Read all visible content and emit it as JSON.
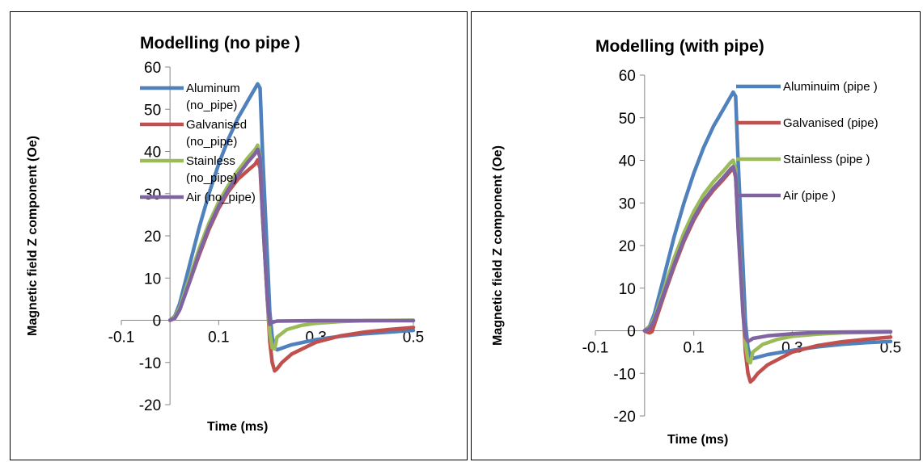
{
  "chart_data": [
    {
      "type": "line",
      "title": "Modelling (no pipe )",
      "xlabel": "Time (ms)",
      "ylabel": "Magnetic field Z component (Oe)",
      "xlim": [
        -0.1,
        0.5
      ],
      "ylim": [
        -20,
        60
      ],
      "x_ticks": [
        "-0.1",
        "0.1",
        "0.3",
        "0.5"
      ],
      "y_ticks": [
        "-20",
        "-10",
        "0",
        "10",
        "20",
        "30",
        "40",
        "50",
        "60"
      ],
      "legend_position": "right",
      "series": [
        {
          "name": "Aluminum (no_pipe)",
          "legend_lines": [
            "Aluminum",
            "(no_pipe)"
          ],
          "color": "#4f81bd",
          "points": [
            [
              0,
              0
            ],
            [
              0.01,
              1
            ],
            [
              0.02,
              4
            ],
            [
              0.04,
              13
            ],
            [
              0.06,
              22
            ],
            [
              0.08,
              30
            ],
            [
              0.1,
              37
            ],
            [
              0.12,
              43
            ],
            [
              0.14,
              48
            ],
            [
              0.16,
              52
            ],
            [
              0.17,
              54
            ],
            [
              0.18,
              56
            ],
            [
              0.185,
              55
            ],
            [
              0.19,
              40
            ],
            [
              0.2,
              15
            ],
            [
              0.205,
              2
            ],
            [
              0.21,
              -4
            ],
            [
              0.215,
              -6.5
            ],
            [
              0.22,
              -7
            ],
            [
              0.25,
              -5.8
            ],
            [
              0.3,
              -4.6
            ],
            [
              0.35,
              -3.8
            ],
            [
              0.4,
              -3.2
            ],
            [
              0.45,
              -2.8
            ],
            [
              0.5,
              -2.4
            ]
          ]
        },
        {
          "name": "Galvanised (no_pipe)",
          "legend_lines": [
            "Galvanised",
            "(no_pipe)"
          ],
          "color": "#c0504d",
          "points": [
            [
              0,
              0
            ],
            [
              0.01,
              0.5
            ],
            [
              0.02,
              2.5
            ],
            [
              0.04,
              9
            ],
            [
              0.06,
              15.5
            ],
            [
              0.08,
              21.5
            ],
            [
              0.1,
              26.5
            ],
            [
              0.12,
              30.5
            ],
            [
              0.14,
              33.5
            ],
            [
              0.16,
              35.5
            ],
            [
              0.175,
              37
            ],
            [
              0.18,
              38
            ],
            [
              0.185,
              36
            ],
            [
              0.19,
              25
            ],
            [
              0.2,
              5
            ],
            [
              0.205,
              -5
            ],
            [
              0.21,
              -10
            ],
            [
              0.215,
              -12
            ],
            [
              0.22,
              -11.5
            ],
            [
              0.23,
              -10
            ],
            [
              0.25,
              -8
            ],
            [
              0.3,
              -5.2
            ],
            [
              0.35,
              -3.7
            ],
            [
              0.4,
              -2.8
            ],
            [
              0.45,
              -2.2
            ],
            [
              0.5,
              -1.7
            ]
          ]
        },
        {
          "name": "Stainless (no_pipe)",
          "legend_lines": [
            "Stainless",
            "(no_pipe)"
          ],
          "color": "#9bbb59",
          "points": [
            [
              0,
              0
            ],
            [
              0.01,
              0.8
            ],
            [
              0.02,
              3
            ],
            [
              0.04,
              10
            ],
            [
              0.06,
              17
            ],
            [
              0.08,
              23
            ],
            [
              0.1,
              28
            ],
            [
              0.12,
              32
            ],
            [
              0.14,
              35.5
            ],
            [
              0.16,
              38.5
            ],
            [
              0.175,
              40.5
            ],
            [
              0.18,
              41.5
            ],
            [
              0.185,
              39
            ],
            [
              0.19,
              25
            ],
            [
              0.2,
              5
            ],
            [
              0.205,
              -3
            ],
            [
              0.21,
              -6.5
            ],
            [
              0.215,
              -6.8
            ],
            [
              0.22,
              -4
            ],
            [
              0.24,
              -2.2
            ],
            [
              0.27,
              -1.2
            ],
            [
              0.3,
              -0.7
            ],
            [
              0.35,
              -0.3
            ],
            [
              0.4,
              -0.1
            ],
            [
              0.5,
              0
            ]
          ]
        },
        {
          "name": "Air (no_pipe)",
          "legend_lines": [
            "Air (no_pipe)"
          ],
          "color": "#8064a2",
          "points": [
            [
              0,
              0
            ],
            [
              0.01,
              0.5
            ],
            [
              0.02,
              2.5
            ],
            [
              0.04,
              9
            ],
            [
              0.06,
              16
            ],
            [
              0.08,
              22
            ],
            [
              0.1,
              27
            ],
            [
              0.12,
              31
            ],
            [
              0.14,
              34.5
            ],
            [
              0.16,
              37.5
            ],
            [
              0.175,
              39.5
            ],
            [
              0.18,
              40.5
            ],
            [
              0.185,
              38.5
            ],
            [
              0.19,
              25
            ],
            [
              0.2,
              5
            ],
            [
              0.205,
              -1
            ],
            [
              0.21,
              -0.5
            ],
            [
              0.22,
              -0.2
            ],
            [
              0.3,
              -0.1
            ],
            [
              0.5,
              -0.1
            ]
          ]
        }
      ]
    },
    {
      "type": "line",
      "title": "Modelling (with pipe)",
      "xlabel": "Time (ms)",
      "ylabel": "Magnetic field  Z component (Oe)",
      "xlim": [
        -0.1,
        0.5
      ],
      "ylim": [
        -20,
        60
      ],
      "x_ticks": [
        "-0.1",
        "0.1",
        "0.3",
        "0.5"
      ],
      "y_ticks": [
        "-20",
        "-10",
        "0",
        "10",
        "20",
        "30",
        "40",
        "50",
        "60"
      ],
      "legend_position": "right",
      "series": [
        {
          "name": "Aluminuim (pipe )",
          "legend_lines": [
            "Aluminuim (pipe )"
          ],
          "color": "#4f81bd",
          "points": [
            [
              0,
              0
            ],
            [
              0.01,
              1
            ],
            [
              0.02,
              4
            ],
            [
              0.04,
              13
            ],
            [
              0.06,
              22
            ],
            [
              0.08,
              30
            ],
            [
              0.1,
              37
            ],
            [
              0.12,
              43
            ],
            [
              0.14,
              48
            ],
            [
              0.16,
              52
            ],
            [
              0.17,
              54
            ],
            [
              0.18,
              56
            ],
            [
              0.185,
              55
            ],
            [
              0.19,
              40
            ],
            [
              0.2,
              15
            ],
            [
              0.205,
              2
            ],
            [
              0.21,
              -4
            ],
            [
              0.215,
              -6.2
            ],
            [
              0.22,
              -6.5
            ],
            [
              0.25,
              -5.6
            ],
            [
              0.3,
              -4.6
            ],
            [
              0.35,
              -3.8
            ],
            [
              0.4,
              -3.2
            ],
            [
              0.45,
              -2.8
            ],
            [
              0.5,
              -2.5
            ]
          ]
        },
        {
          "name": "Galvanised  (pipe)",
          "legend_lines": [
            "Galvanised  (pipe)"
          ],
          "color": "#c0504d",
          "points": [
            [
              0,
              0
            ],
            [
              0.005,
              -0.3
            ],
            [
              0.01,
              -0.5
            ],
            [
              0.015,
              -0.2
            ],
            [
              0.02,
              1.5
            ],
            [
              0.04,
              8.5
            ],
            [
              0.06,
              15
            ],
            [
              0.08,
              21
            ],
            [
              0.1,
              26
            ],
            [
              0.12,
              30
            ],
            [
              0.14,
              33
            ],
            [
              0.16,
              35.5
            ],
            [
              0.175,
              37.5
            ],
            [
              0.18,
              38.5
            ],
            [
              0.185,
              36
            ],
            [
              0.19,
              25
            ],
            [
              0.2,
              5
            ],
            [
              0.205,
              -5
            ],
            [
              0.21,
              -10
            ],
            [
              0.215,
              -12
            ],
            [
              0.22,
              -11.5
            ],
            [
              0.23,
              -10
            ],
            [
              0.25,
              -8
            ],
            [
              0.3,
              -5
            ],
            [
              0.35,
              -3.5
            ],
            [
              0.4,
              -2.6
            ],
            [
              0.45,
              -2
            ],
            [
              0.5,
              -1.5
            ]
          ]
        },
        {
          "name": "Stainless  (pipe )",
          "legend_lines": [
            "Stainless  (pipe )"
          ],
          "color": "#9bbb59",
          "points": [
            [
              0,
              0
            ],
            [
              0.01,
              0.8
            ],
            [
              0.02,
              3
            ],
            [
              0.04,
              10
            ],
            [
              0.06,
              17
            ],
            [
              0.08,
              23
            ],
            [
              0.1,
              28
            ],
            [
              0.12,
              32
            ],
            [
              0.14,
              35
            ],
            [
              0.16,
              37.5
            ],
            [
              0.175,
              39.5
            ],
            [
              0.18,
              40
            ],
            [
              0.185,
              38
            ],
            [
              0.19,
              25
            ],
            [
              0.2,
              5
            ],
            [
              0.205,
              -3
            ],
            [
              0.21,
              -7
            ],
            [
              0.215,
              -7.5
            ],
            [
              0.22,
              -5
            ],
            [
              0.24,
              -3.2
            ],
            [
              0.27,
              -2
            ],
            [
              0.3,
              -1.3
            ],
            [
              0.35,
              -0.8
            ],
            [
              0.4,
              -0.5
            ],
            [
              0.5,
              -0.3
            ]
          ]
        },
        {
          "name": "Air (pipe )",
          "legend_lines": [
            "Air (pipe )"
          ],
          "color": "#8064a2",
          "points": [
            [
              0,
              0
            ],
            [
              0.01,
              0.5
            ],
            [
              0.02,
              2.5
            ],
            [
              0.04,
              9
            ],
            [
              0.06,
              15.5
            ],
            [
              0.08,
              21.5
            ],
            [
              0.1,
              26.5
            ],
            [
              0.12,
              30.5
            ],
            [
              0.14,
              33.5
            ],
            [
              0.16,
              36
            ],
            [
              0.175,
              38
            ],
            [
              0.18,
              38.5
            ],
            [
              0.185,
              36.5
            ],
            [
              0.19,
              24
            ],
            [
              0.2,
              4
            ],
            [
              0.205,
              -1.5
            ],
            [
              0.21,
              -2.5
            ],
            [
              0.215,
              -2.2
            ],
            [
              0.22,
              -1.8
            ],
            [
              0.25,
              -1.2
            ],
            [
              0.3,
              -0.7
            ],
            [
              0.35,
              -0.4
            ],
            [
              0.4,
              -0.3
            ],
            [
              0.5,
              -0.2
            ]
          ]
        }
      ]
    }
  ]
}
